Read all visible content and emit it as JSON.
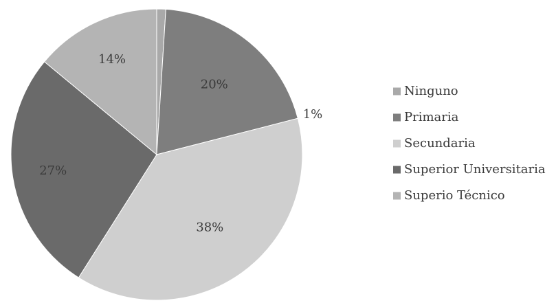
{
  "chart_data": {
    "type": "pie",
    "title": "",
    "categories": [
      "Ninguno",
      "Primaria",
      "Secundaria",
      "Superior Universitaria",
      "Superio Técnico"
    ],
    "values": [
      1,
      20,
      38,
      27,
      14
    ],
    "labels": [
      "1%",
      "20%",
      "38%",
      "27%",
      "14%"
    ],
    "colors": [
      "#a9a9a9",
      "#7e7e7e",
      "#cfcfcf",
      "#6a6a6a",
      "#b4b4b4"
    ],
    "start_angle_deg": 0,
    "direction": "clockwise",
    "legend_placement": "right"
  }
}
